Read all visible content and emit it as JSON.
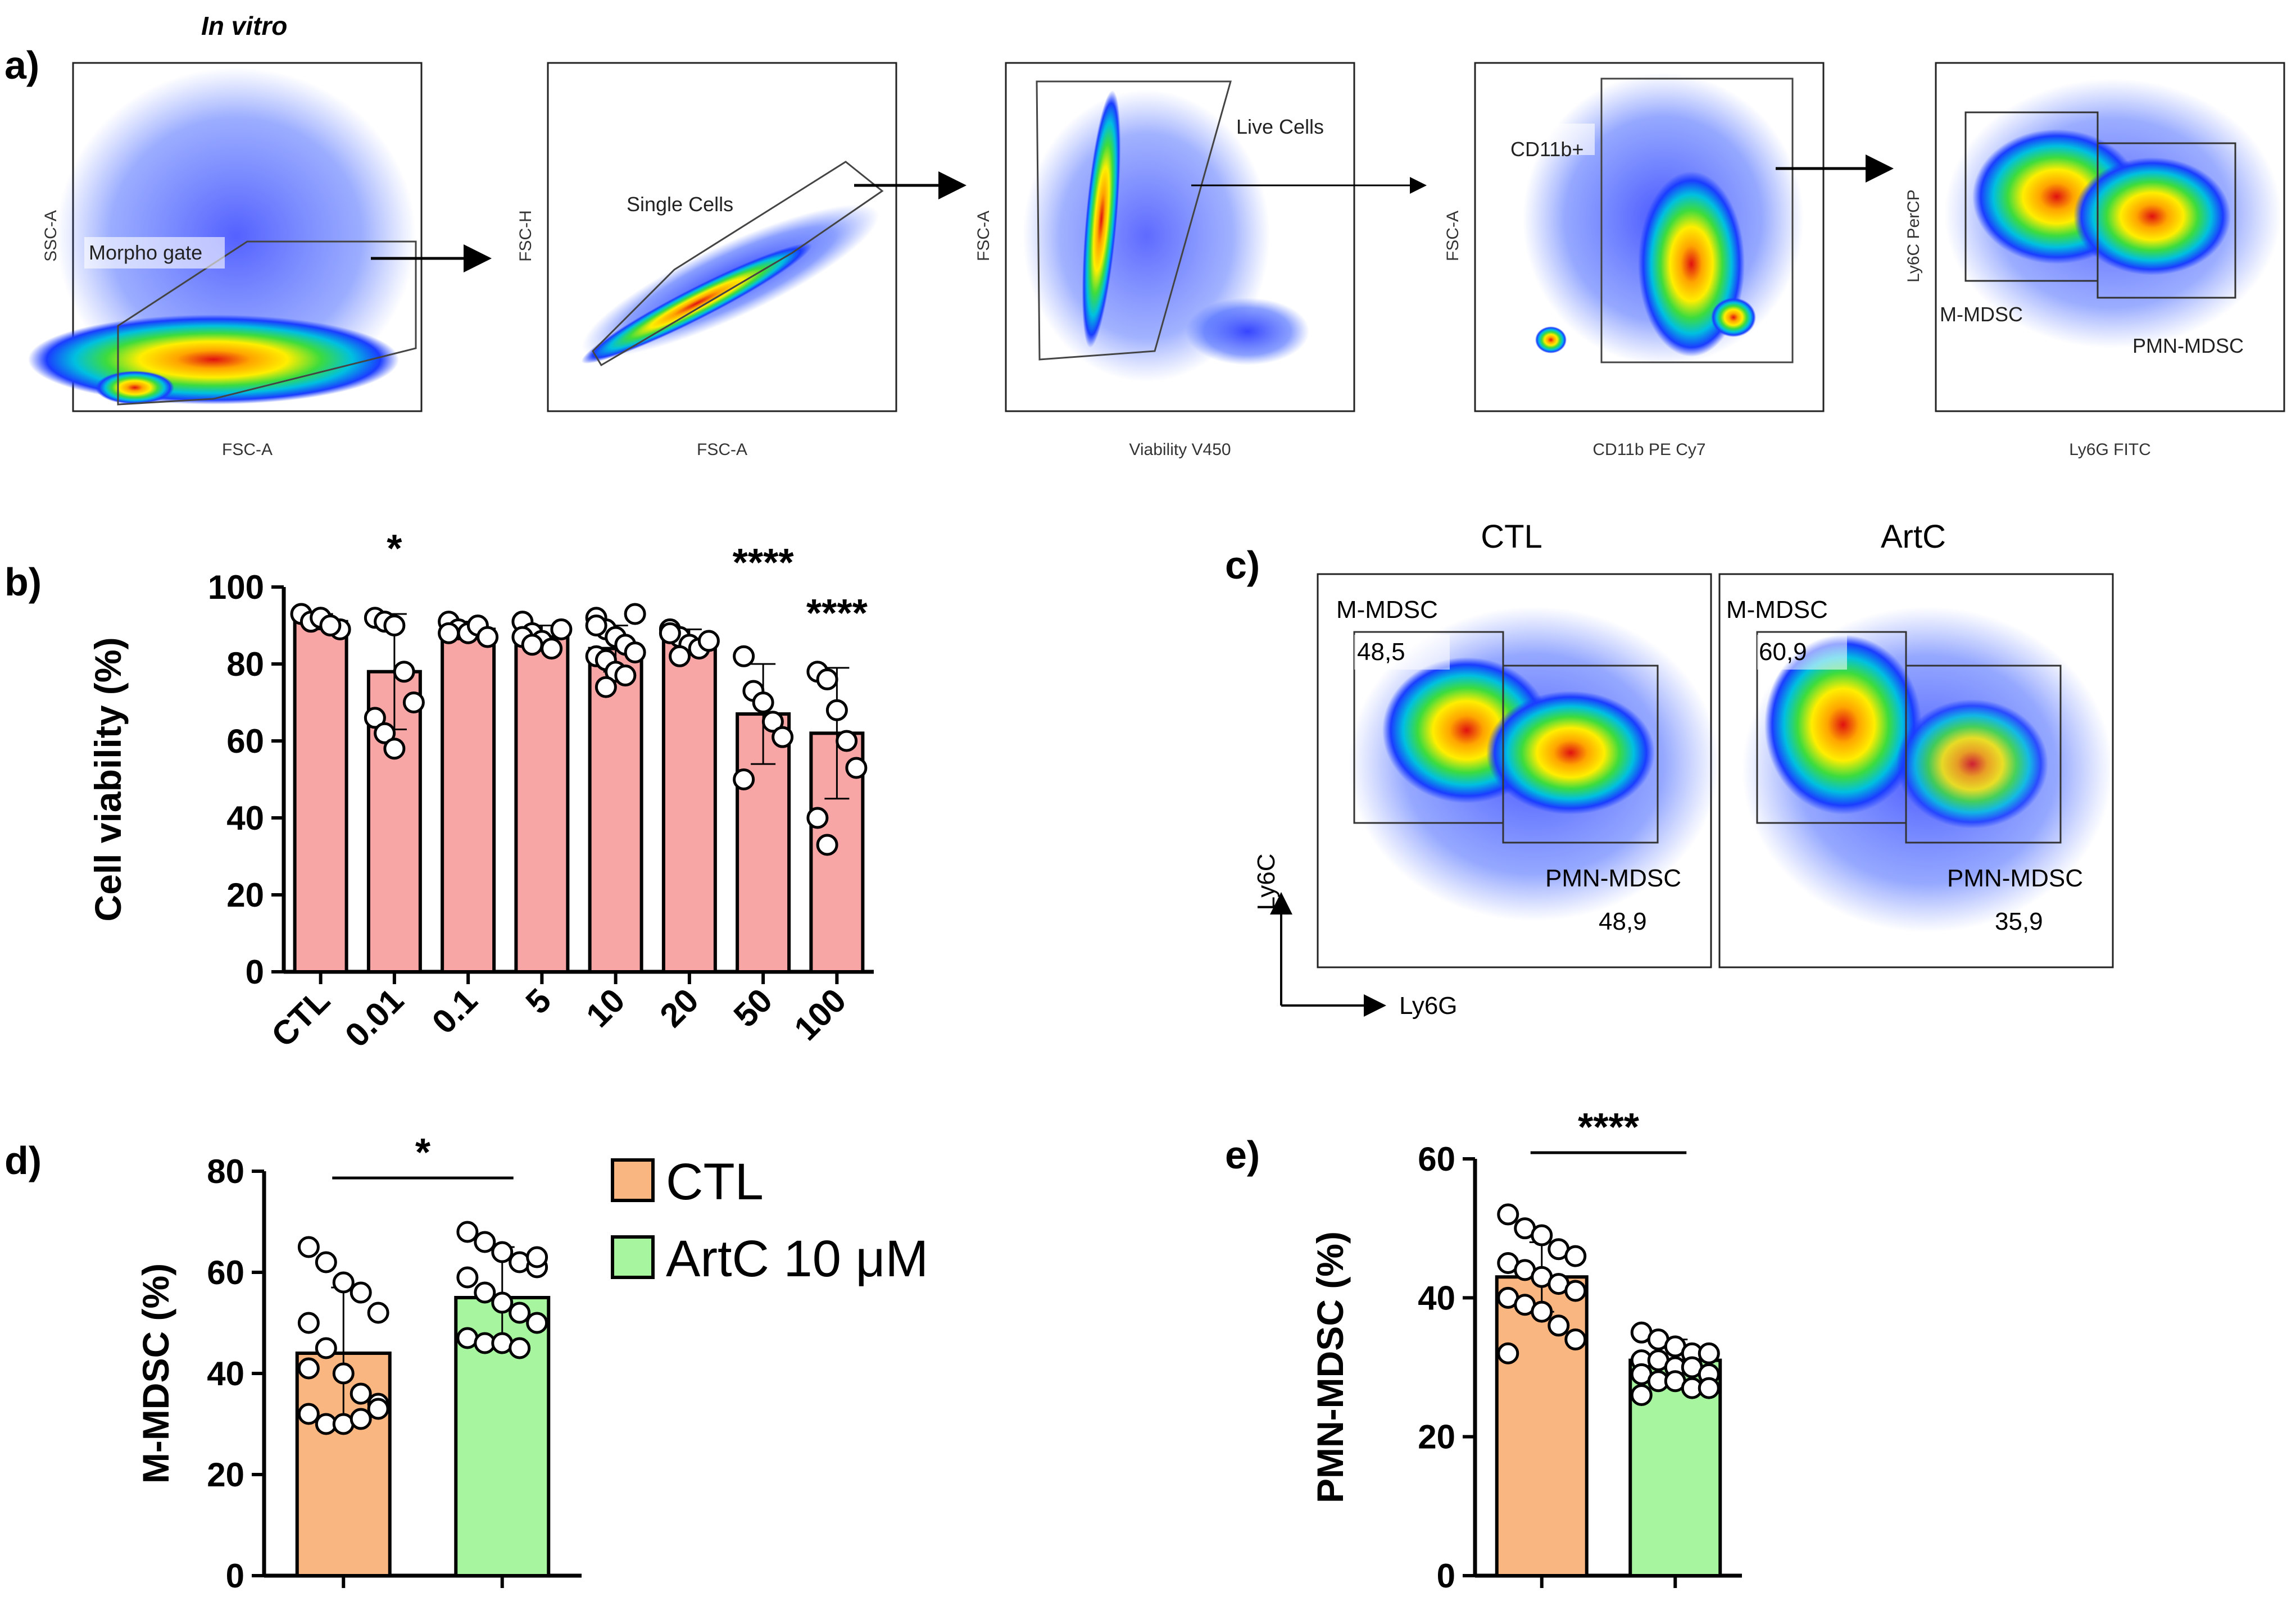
{
  "panel_labels": {
    "a": "a)",
    "b": "b)",
    "c": "c)",
    "d": "d)",
    "e": "e)"
  },
  "facs": {
    "title": "In vitro",
    "plots": [
      {
        "x_axis": "FSC-A",
        "y_axis": "SSC-A",
        "gate": "Morpho gate"
      },
      {
        "x_axis": "FSC-A",
        "y_axis": "FSC-H",
        "gate": "Single Cells"
      },
      {
        "x_axis": "Viability V450",
        "y_axis": "FSC-A",
        "gate": "Live Cells"
      },
      {
        "x_axis": "CD11b PE Cy7",
        "y_axis": "FSC-A",
        "gate": "CD11b+"
      },
      {
        "x_axis": "Ly6G FITC",
        "y_axis": "Ly6C PerCP",
        "gate": "M-MDSC",
        "gate2": "PMN-MDSC"
      }
    ]
  },
  "panel_c": {
    "conditions": [
      {
        "name": "CTL",
        "m_label": "M-MDSC",
        "m_value": "48,5",
        "p_label": "PMN-MDSC",
        "p_value": "48,9"
      },
      {
        "name": "ArtC",
        "m_label": "M-MDSC",
        "m_value": "60,9",
        "p_label": "PMN-MDSC",
        "p_value": "35,9"
      }
    ],
    "y_axis": "Ly6C",
    "x_axis": "Ly6G"
  },
  "legend": {
    "items": [
      {
        "label": "CTL",
        "color": "#F9B680"
      },
      {
        "label": "ArtC 10 μM",
        "color": "#A8F5A0"
      }
    ]
  },
  "chart_data": [
    {
      "id": "b",
      "type": "bar",
      "categories": [
        "CTL",
        "0.01",
        "0.1",
        "5",
        "10",
        "20",
        "50",
        "100"
      ],
      "values": [
        91,
        78,
        89,
        87,
        84,
        86,
        67,
        62
      ],
      "errors": [
        2,
        15,
        2,
        3,
        6,
        3,
        13,
        17
      ],
      "significance": [
        "",
        "*",
        "",
        "",
        "",
        "",
        "****",
        "****"
      ],
      "points": [
        [
          93,
          91,
          92,
          90,
          89,
          93,
          91,
          92,
          90
        ],
        [
          92,
          91,
          90,
          78,
          70,
          66,
          62,
          58
        ],
        [
          91,
          89,
          88,
          90,
          87,
          88
        ],
        [
          91,
          88,
          86,
          84,
          89,
          87,
          85
        ],
        [
          92,
          89,
          87,
          85,
          83,
          82,
          81,
          78,
          77,
          93,
          90,
          74
        ],
        [
          89,
          87,
          85,
          84,
          86,
          88,
          82
        ],
        [
          82,
          73,
          70,
          65,
          61,
          50
        ],
        [
          78,
          76,
          68,
          60,
          53,
          40,
          33
        ]
      ],
      "ylabel": "Cell viability (%)",
      "ylim": [
        0,
        100
      ],
      "yticks": [
        0,
        20,
        40,
        60,
        80,
        100
      ],
      "color": "#F7A5A5"
    },
    {
      "id": "d",
      "type": "bar",
      "categories": [
        "CTL",
        "ArtC 10 μM"
      ],
      "values": [
        44,
        55
      ],
      "errors": [
        13,
        10
      ],
      "significance": "*",
      "points": [
        [
          65,
          62,
          58,
          56,
          52,
          50,
          45,
          40,
          36,
          34,
          32,
          30,
          30,
          31,
          33,
          41
        ],
        [
          68,
          66,
          64,
          62,
          61,
          59,
          56,
          54,
          52,
          50,
          47,
          46,
          46,
          45,
          63
        ]
      ],
      "ylabel": "M-MDSC (%)",
      "ylim": [
        0,
        80
      ],
      "yticks": [
        0,
        20,
        40,
        60,
        80
      ],
      "colors": [
        "#F9B680",
        "#A8F5A0"
      ]
    },
    {
      "id": "e",
      "type": "bar",
      "categories": [
        "CTL",
        "ArtC 10 μM"
      ],
      "values": [
        43,
        31
      ],
      "errors": [
        5,
        3
      ],
      "significance": "****",
      "points": [
        [
          52,
          50,
          49,
          47,
          46,
          45,
          44,
          43,
          42,
          41,
          40,
          39,
          38,
          36,
          34,
          32
        ],
        [
          35,
          34,
          33,
          32,
          32,
          31,
          31,
          30,
          30,
          29,
          29,
          28,
          28,
          27,
          27,
          26
        ]
      ],
      "ylabel": "PMN-MDSC (%)",
      "ylim": [
        0,
        60
      ],
      "yticks": [
        0,
        20,
        40,
        60
      ],
      "colors": [
        "#F9B680",
        "#A8F5A0"
      ]
    }
  ]
}
